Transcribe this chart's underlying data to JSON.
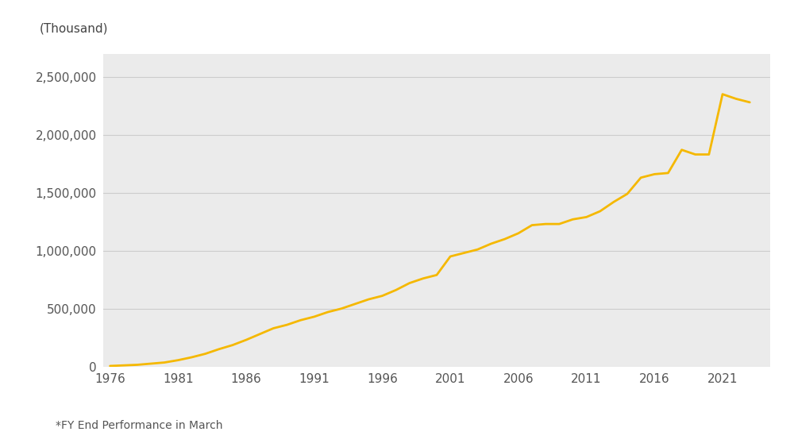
{
  "years": [
    1976,
    1977,
    1978,
    1979,
    1980,
    1981,
    1982,
    1983,
    1984,
    1985,
    1986,
    1987,
    1988,
    1989,
    1990,
    1991,
    1992,
    1993,
    1994,
    1995,
    1996,
    1997,
    1998,
    1999,
    2000,
    2001,
    2002,
    2003,
    2004,
    2005,
    2006,
    2007,
    2008,
    2009,
    2010,
    2011,
    2012,
    2013,
    2014,
    2015,
    2016,
    2017,
    2018,
    2019,
    2020,
    2021,
    2022,
    2023
  ],
  "values": [
    5000,
    10000,
    15000,
    25000,
    35000,
    55000,
    80000,
    110000,
    150000,
    185000,
    230000,
    280000,
    330000,
    360000,
    400000,
    430000,
    470000,
    500000,
    540000,
    580000,
    610000,
    660000,
    720000,
    760000,
    790000,
    950000,
    980000,
    1010000,
    1060000,
    1100000,
    1150000,
    1220000,
    1230000,
    1230000,
    1270000,
    1290000,
    1340000,
    1420000,
    1490000,
    1630000,
    1660000,
    1670000,
    1870000,
    1830000,
    1830000,
    2350000,
    2310000,
    2280000
  ],
  "line_color": "#F5B800",
  "line_width": 2.0,
  "background_color": "#ebebeb",
  "outer_background": "#ffffff",
  "ylabel": "(Thousand)",
  "yticks": [
    0,
    500000,
    1000000,
    1500000,
    2000000,
    2500000
  ],
  "ytick_labels": [
    "0",
    "500,000",
    "1,000,000",
    "1,500,000",
    "2,000,000",
    "2,500,000"
  ],
  "xticks": [
    1976,
    1981,
    1986,
    1991,
    1996,
    2001,
    2006,
    2011,
    2016,
    2021
  ],
  "ylim": [
    0,
    2700000
  ],
  "xlim": [
    1975.5,
    2024.5
  ],
  "footnote": "*FY End Performance in March",
  "tick_fontsize": 11,
  "footnote_fontsize": 10
}
